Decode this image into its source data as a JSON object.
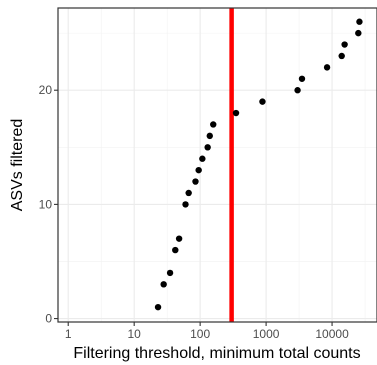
{
  "chart_data": {
    "type": "scatter",
    "title": "",
    "xlabel": "Filtering threshold, minimum total counts",
    "ylabel": "ASVs filtered",
    "x_scale": "log10",
    "xlim": [
      0.7,
      48000
    ],
    "ylim": [
      -0.3,
      27.2
    ],
    "x_ticks": [
      1,
      10,
      100,
      1000,
      10000
    ],
    "x_tick_labels": [
      "1",
      "10",
      "100",
      "1000",
      "10000"
    ],
    "y_ticks": [
      0,
      10,
      20
    ],
    "y_tick_labels": [
      "0",
      "10",
      "20"
    ],
    "grid": true,
    "legend": "none",
    "point_color": "#000000",
    "vline": {
      "x": 300,
      "color": "#ff0000"
    },
    "points": [
      {
        "x": 23,
        "y": 1
      },
      {
        "x": 28,
        "y": 3
      },
      {
        "x": 35,
        "y": 4
      },
      {
        "x": 42,
        "y": 6
      },
      {
        "x": 48,
        "y": 7
      },
      {
        "x": 60,
        "y": 10
      },
      {
        "x": 67,
        "y": 11
      },
      {
        "x": 85,
        "y": 12
      },
      {
        "x": 95,
        "y": 13
      },
      {
        "x": 108,
        "y": 14
      },
      {
        "x": 130,
        "y": 15
      },
      {
        "x": 140,
        "y": 16
      },
      {
        "x": 158,
        "y": 17
      },
      {
        "x": 350,
        "y": 18
      },
      {
        "x": 880,
        "y": 19
      },
      {
        "x": 3000,
        "y": 20
      },
      {
        "x": 3500,
        "y": 21
      },
      {
        "x": 8400,
        "y": 22
      },
      {
        "x": 14000,
        "y": 23
      },
      {
        "x": 15500,
        "y": 24
      },
      {
        "x": 25000,
        "y": 25
      },
      {
        "x": 26000,
        "y": 26
      }
    ]
  }
}
